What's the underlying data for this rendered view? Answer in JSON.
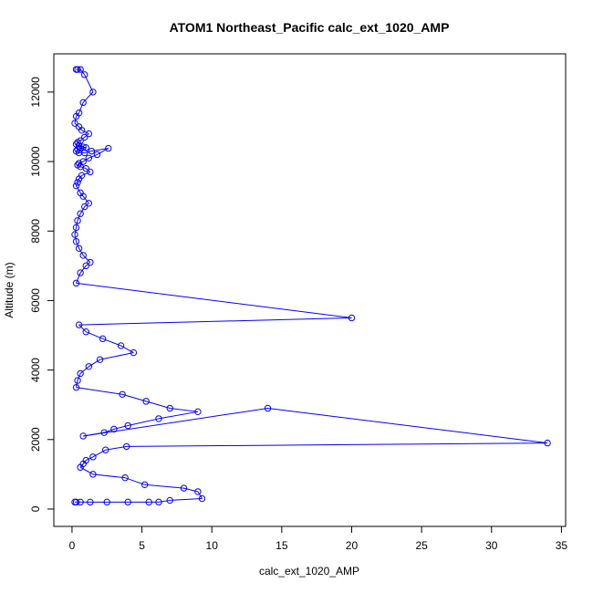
{
  "chart_data": {
    "type": "line",
    "title": "ATOM1 Northeast_Pacific calc_ext_1020_AMP",
    "xlabel": "calc_ext_1020_AMP",
    "ylabel": "Altitude (m)",
    "xlim": [
      -1.3,
      35.3
    ],
    "ylim": [
      -500,
      13100
    ],
    "xticks": [
      0,
      5,
      10,
      15,
      20,
      25,
      30,
      35
    ],
    "yticks": [
      0,
      2000,
      4000,
      6000,
      8000,
      10000,
      12000
    ],
    "grid": false,
    "legend": "none",
    "series_color": "#0000ff",
    "marker": "open-circle",
    "series": [
      {
        "x": [
          0.3,
          0.4,
          0.6,
          0.9,
          1.5,
          0.8,
          0.5,
          0.3,
          0.2,
          0.5,
          0.7,
          1.2,
          0.9,
          0.6,
          0.4,
          0.3,
          0.5,
          0.8,
          1.0,
          0.6,
          0.4,
          0.3,
          0.5,
          0.9,
          1.4,
          2.6,
          1.8,
          1.2,
          0.8,
          0.5,
          0.4,
          0.6,
          1.0,
          1.3,
          0.7,
          0.5,
          0.4,
          0.3,
          0.6,
          0.8,
          1.2,
          0.9,
          0.6,
          0.4,
          0.3,
          0.2,
          0.3,
          0.5,
          0.8,
          1.3,
          1.0,
          0.6,
          0.3,
          20.0,
          0.5,
          1.0,
          2.2,
          3.5,
          4.4,
          2.0,
          1.2,
          0.6,
          0.4,
          0.3,
          3.6,
          5.3,
          7.0,
          9.0,
          6.2,
          4.0,
          3.0,
          2.3,
          0.8,
          14.0,
          34.0,
          3.9,
          2.4,
          1.5,
          1.0,
          0.8,
          0.6,
          1.5,
          3.8,
          5.2,
          8.0,
          9.0,
          9.3,
          7.0,
          6.2,
          5.5,
          4.0,
          2.5,
          1.3,
          0.6,
          0.3,
          0.2
        ],
        "y": [
          12650,
          12650,
          12650,
          12500,
          12000,
          11700,
          11400,
          11300,
          11100,
          11000,
          10900,
          10800,
          10700,
          10600,
          10550,
          10500,
          10450,
          10420,
          10400,
          10380,
          10350,
          10300,
          10250,
          10250,
          10300,
          10380,
          10200,
          10100,
          10000,
          9950,
          9900,
          9850,
          9800,
          9700,
          9600,
          9500,
          9400,
          9300,
          9100,
          9000,
          8800,
          8700,
          8500,
          8300,
          8100,
          7900,
          7700,
          7500,
          7300,
          7100,
          7000,
          6800,
          6500,
          5500,
          5300,
          5100,
          4900,
          4700,
          4500,
          4300,
          4100,
          3900,
          3700,
          3500,
          3300,
          3100,
          2900,
          2800,
          2600,
          2400,
          2300,
          2200,
          2100,
          2900,
          1900,
          1800,
          1700,
          1500,
          1400,
          1300,
          1200,
          1000,
          900,
          700,
          600,
          500,
          300,
          250,
          200,
          200,
          200,
          200,
          200,
          200,
          200,
          200
        ]
      }
    ]
  }
}
